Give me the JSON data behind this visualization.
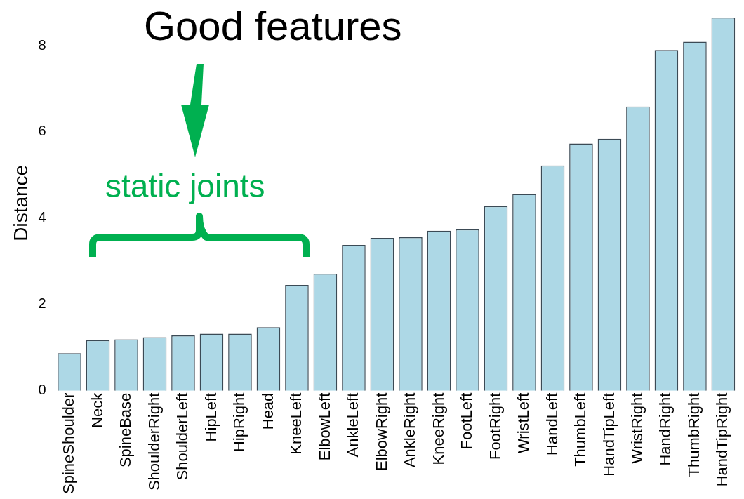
{
  "chart_data": {
    "type": "bar",
    "ylabel": "Distance",
    "categories": [
      "SpineShoulder",
      "Neck",
      "SpineBase",
      "ShoulderRight",
      "ShoulderLeft",
      "HipLeft",
      "HipRight",
      "Head",
      "KneeLeft",
      "ElbowLeft",
      "AnkleLeft",
      "ElbowRight",
      "AnkleRight",
      "KneeRight",
      "FootLeft",
      "FootRight",
      "WristLeft",
      "HandLeft",
      "ThumbLeft",
      "HandTipLeft",
      "WristRight",
      "HandRight",
      "ThumbRight",
      "HandTipRight"
    ],
    "values": [
      0.87,
      1.17,
      1.19,
      1.24,
      1.28,
      1.32,
      1.32,
      1.47,
      2.45,
      2.71,
      3.38,
      3.54,
      3.56,
      3.71,
      3.74,
      4.28,
      4.56,
      5.22,
      5.73,
      5.84,
      6.59,
      7.9,
      8.09,
      8.65
    ],
    "color": "#add8e6",
    "ylim": [
      0,
      8.7
    ],
    "yticks": [
      0,
      2,
      4,
      6,
      8
    ],
    "grid": false,
    "legend": false,
    "annotations": [
      "Good features",
      "static joints"
    ]
  }
}
